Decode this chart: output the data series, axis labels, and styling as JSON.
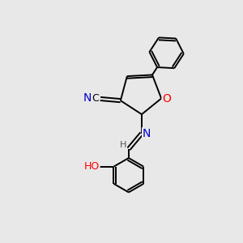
{
  "background_color": "#e8e8e8",
  "bond_color": "#000000",
  "atom_colors": {
    "O_furan": "#ff0000",
    "O_hydroxyl": "#ff0000",
    "N": "#0000cc",
    "C": "#000000",
    "H": "#555555"
  },
  "lw": 1.4,
  "font_size": 9,
  "figsize": [
    3.0,
    3.0
  ],
  "dpi": 100
}
